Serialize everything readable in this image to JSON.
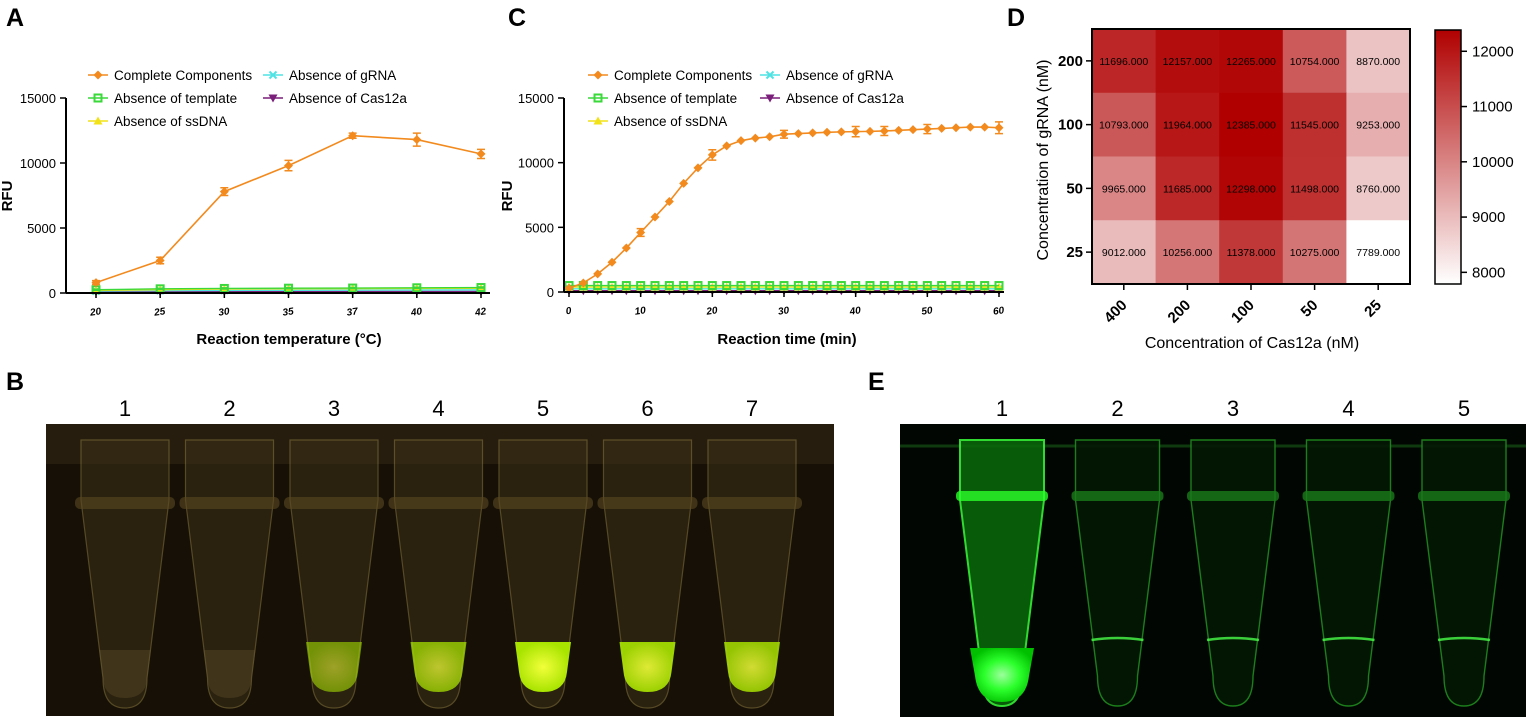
{
  "panels": {
    "a": "A",
    "b": "B",
    "c": "C",
    "d": "D",
    "e": "E"
  },
  "colors": {
    "complete": "#F28A1E",
    "template": "#3AD83A",
    "ssdna": "#F2E21A",
    "grna": "#4FE3E3",
    "cas12a": "#7A1F7A"
  },
  "chart_data": [
    {
      "type": "line",
      "panel": "A",
      "xlabel": "Reaction temperature (°C)",
      "ylabel": "RFU",
      "ylim": [
        0,
        15000
      ],
      "yticks": [
        0,
        5000,
        10000,
        15000
      ],
      "x": [
        20,
        25,
        30,
        35,
        37,
        40,
        42
      ],
      "x_tick_labels": [
        "20",
        "25",
        "30",
        "35",
        "37",
        "40",
        "42"
      ],
      "legend": [
        "Complete Components",
        "Absence of template",
        "Absence of ssDNA",
        "Absence of gRNA",
        "Absence of Cas12a"
      ],
      "series": [
        {
          "name": "Complete Components",
          "color": "complete",
          "marker": "diamond",
          "values": [
            800,
            2500,
            7800,
            9800,
            12100,
            11800,
            10700
          ],
          "errors": [
            150,
            250,
            300,
            400,
            200,
            500,
            350
          ]
        },
        {
          "name": "Absence of template",
          "color": "template",
          "marker": "square",
          "values": [
            250,
            320,
            350,
            370,
            380,
            400,
            420
          ],
          "errors": [
            40,
            40,
            40,
            40,
            40,
            40,
            40
          ]
        },
        {
          "name": "Absence of ssDNA",
          "color": "ssdna",
          "marker": "triangle",
          "values": [
            200,
            260,
            300,
            320,
            330,
            350,
            360
          ],
          "errors": [
            30,
            30,
            30,
            30,
            30,
            30,
            30
          ]
        },
        {
          "name": "Absence of gRNA",
          "color": "grna",
          "marker": "x",
          "values": [
            150,
            180,
            200,
            210,
            220,
            230,
            240
          ],
          "errors": [
            30,
            30,
            30,
            30,
            30,
            30,
            30
          ]
        },
        {
          "name": "Absence of Cas12a",
          "color": "cas12a",
          "marker": "tridown",
          "values": [
            100,
            100,
            110,
            110,
            120,
            120,
            120
          ],
          "errors": [
            20,
            20,
            20,
            20,
            20,
            20,
            20
          ]
        }
      ]
    },
    {
      "type": "line",
      "panel": "C",
      "xlabel": "Reaction time (min)",
      "ylabel": "RFU",
      "ylim": [
        0,
        15000
      ],
      "yticks": [
        0,
        5000,
        10000,
        15000
      ],
      "xlim": [
        0,
        60
      ],
      "xticks": [
        0,
        10,
        20,
        30,
        40,
        50,
        60
      ],
      "x": [
        0,
        2,
        4,
        6,
        8,
        10,
        12,
        14,
        16,
        18,
        20,
        22,
        24,
        26,
        28,
        30,
        32,
        34,
        36,
        38,
        40,
        42,
        44,
        46,
        48,
        50,
        52,
        54,
        56,
        58,
        60
      ],
      "legend": [
        "Complete Components",
        "Absence of template",
        "Absence of ssDNA",
        "Absence of gRNA",
        "Absence of Cas12a"
      ],
      "series": [
        {
          "name": "Complete Components",
          "color": "complete",
          "marker": "diamond",
          "values": [
            300,
            700,
            1400,
            2300,
            3400,
            4600,
            5800,
            7000,
            8400,
            9600,
            10600,
            11300,
            11700,
            11900,
            12000,
            12200,
            12250,
            12300,
            12350,
            12380,
            12400,
            12420,
            12450,
            12500,
            12550,
            12600,
            12650,
            12700,
            12750,
            12750,
            12700
          ],
          "errors": [
            0,
            0,
            0,
            0,
            0,
            300,
            0,
            0,
            0,
            0,
            400,
            0,
            0,
            0,
            0,
            300,
            0,
            0,
            0,
            0,
            400,
            0,
            350,
            0,
            0,
            350,
            0,
            0,
            0,
            0,
            450
          ]
        },
        {
          "name": "Absence of template",
          "color": "template",
          "marker": "square",
          "values": [
            500,
            500,
            500,
            500,
            500,
            500,
            500,
            500,
            500,
            500,
            500,
            500,
            500,
            500,
            500,
            500,
            500,
            500,
            500,
            500,
            500,
            500,
            500,
            500,
            500,
            500,
            500,
            500,
            500,
            500,
            500
          ],
          "errors": []
        },
        {
          "name": "Absence of ssDNA",
          "color": "ssdna",
          "marker": "triangle",
          "values": [
            380,
            380,
            380,
            380,
            380,
            380,
            380,
            380,
            380,
            380,
            380,
            380,
            380,
            380,
            380,
            380,
            380,
            380,
            380,
            380,
            380,
            380,
            380,
            380,
            380,
            380,
            380,
            380,
            380,
            380,
            380
          ],
          "errors": []
        },
        {
          "name": "Absence of gRNA",
          "color": "grna",
          "marker": "x",
          "values": [
            250,
            250,
            250,
            250,
            250,
            250,
            250,
            250,
            250,
            250,
            250,
            250,
            250,
            250,
            250,
            250,
            250,
            250,
            250,
            250,
            250,
            250,
            250,
            250,
            250,
            250,
            250,
            250,
            250,
            250,
            250
          ],
          "errors": []
        },
        {
          "name": "Absence of Cas12a",
          "color": "cas12a",
          "marker": "tridown",
          "values": [
            100,
            100,
            100,
            100,
            100,
            100,
            100,
            100,
            100,
            100,
            100,
            100,
            100,
            100,
            100,
            100,
            100,
            100,
            100,
            100,
            100,
            100,
            100,
            100,
            100,
            100,
            100,
            100,
            100,
            100,
            100
          ],
          "errors": []
        }
      ]
    },
    {
      "type": "heatmap",
      "panel": "D",
      "xlabel": "Concentration of Cas12a (nM)",
      "ylabel": "Concentration of gRNA (nM)",
      "x_categories": [
        "400",
        "200",
        "100",
        "50",
        "25"
      ],
      "y_categories": [
        "200",
        "100",
        "50",
        "25"
      ],
      "values": [
        [
          11696.0,
          12157.0,
          12265.0,
          10754.0,
          8870.0
        ],
        [
          10793.0,
          11964.0,
          12385.0,
          11545.0,
          9253.0
        ],
        [
          9965.0,
          11685.0,
          12298.0,
          11498.0,
          8760.0
        ],
        [
          9012.0,
          10256.0,
          11378.0,
          10275.0,
          7789.0
        ]
      ],
      "value_labels": [
        [
          "11696.000",
          "12157.000",
          "12265.000",
          "10754.000",
          "8870.000"
        ],
        [
          "10793.000",
          "11964.000",
          "12385.000",
          "11545.000",
          "9253.000"
        ],
        [
          "9965.000",
          "11685.000",
          "12298.000",
          "11498.000",
          "8760.000"
        ],
        [
          "9012.000",
          "10256.000",
          "11378.000",
          "10275.000",
          "7789.000"
        ]
      ],
      "colorbar": {
        "min": 7789,
        "max": 12385,
        "ticks": [
          8000,
          9000,
          10000,
          11000,
          12000
        ],
        "low_color": "#FFFFFF",
        "high_color": "#B00000"
      }
    }
  ],
  "photo_b": {
    "lanes": [
      "1",
      "2",
      "3",
      "4",
      "5",
      "6",
      "7"
    ],
    "fluorescence": [
      0.0,
      0.02,
      0.35,
      0.6,
      1.0,
      0.85,
      0.75
    ]
  },
  "photo_e": {
    "lanes": [
      "1",
      "2",
      "3",
      "4",
      "5"
    ],
    "fluorescence": [
      1.0,
      0.08,
      0.06,
      0.06,
      0.06
    ]
  }
}
